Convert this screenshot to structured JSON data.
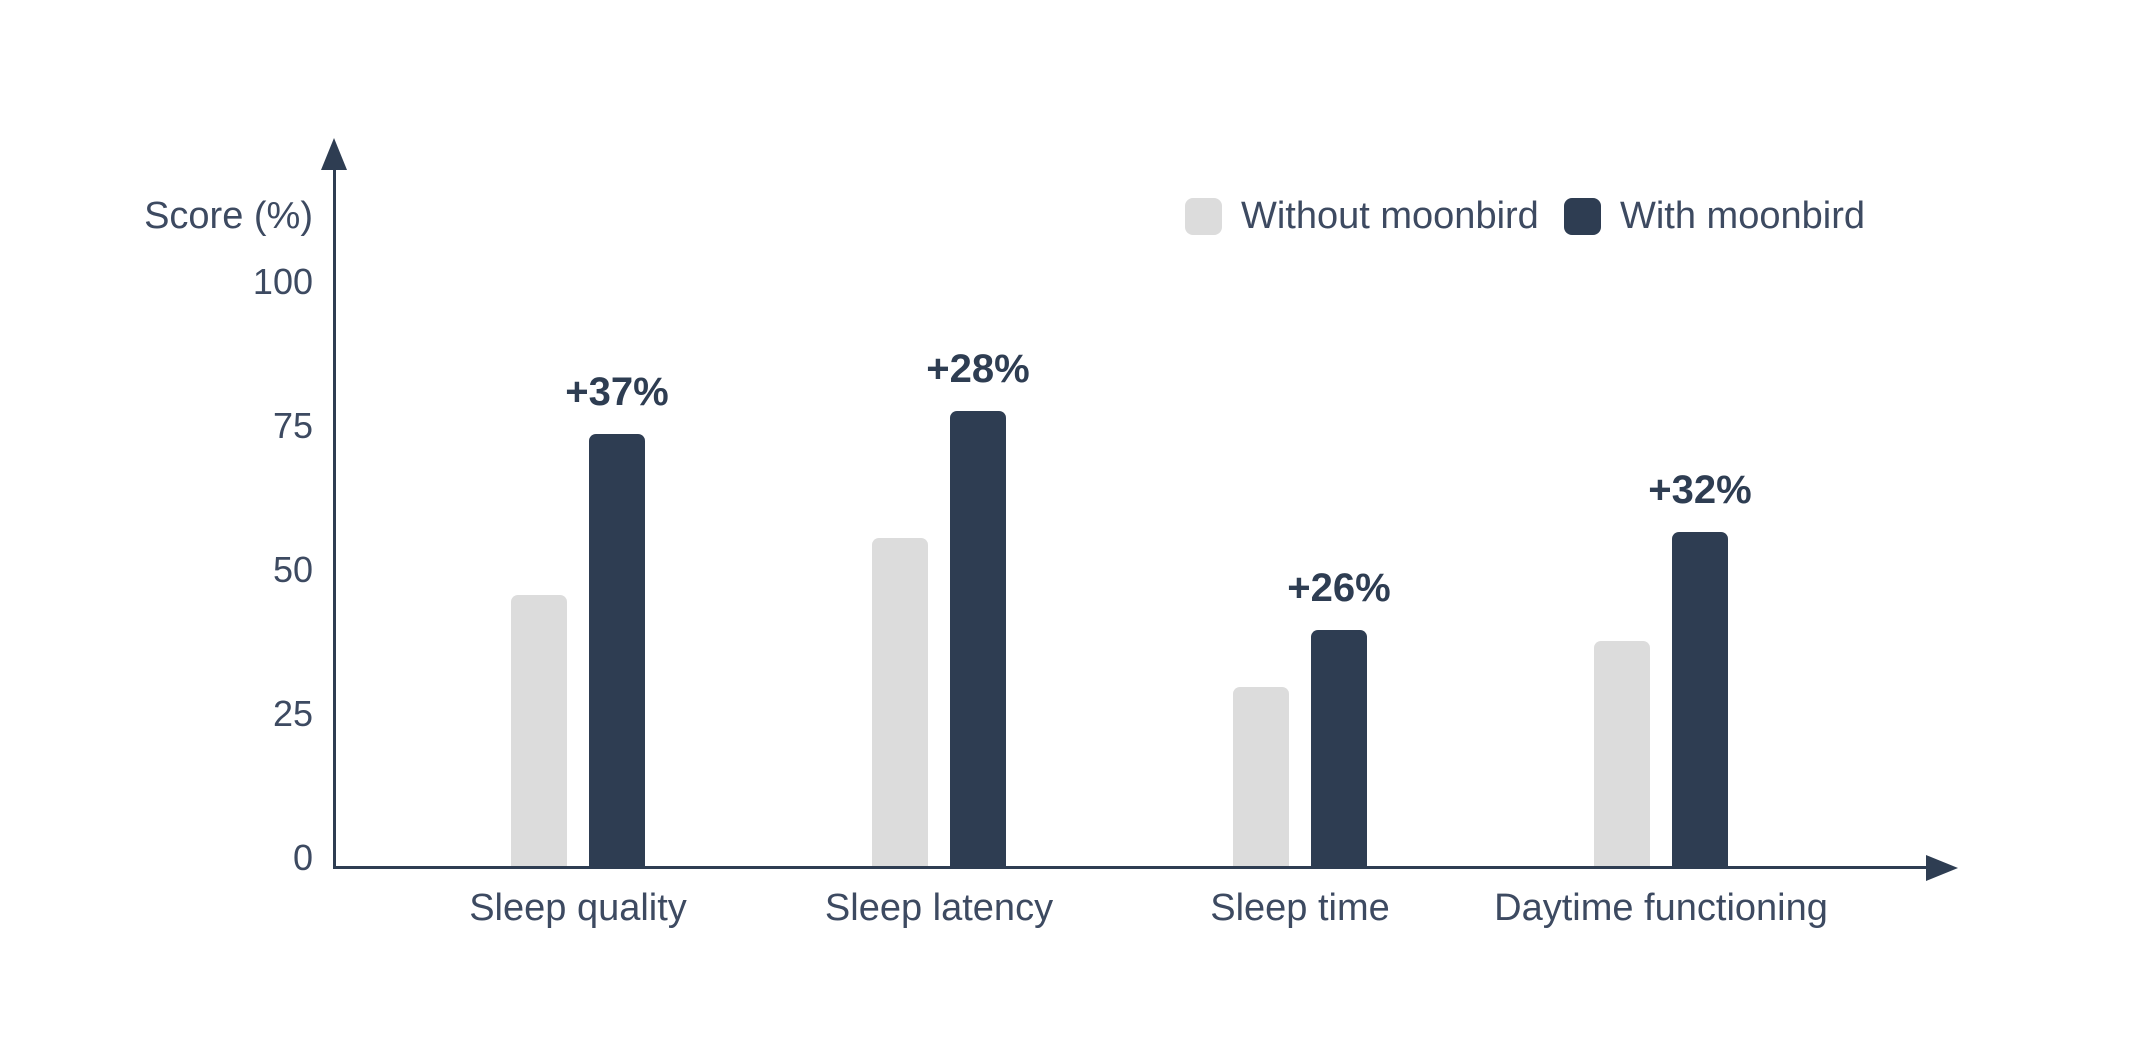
{
  "chart_data": {
    "type": "bar",
    "title": "",
    "ylabel": "Score (%)",
    "xlabel": "",
    "categories": [
      "Sleep quality",
      "Sleep latency",
      "Sleep time",
      "Daytime functioning"
    ],
    "series": [
      {
        "name": "Without moonbird",
        "color": "#dcdcdc",
        "values": [
          47,
          57,
          31,
          39
        ]
      },
      {
        "name": "With moonbird",
        "color": "#2e3d52",
        "values": [
          75,
          79,
          41,
          58
        ]
      }
    ],
    "annotations": [
      "+37%",
      "+28%",
      "+26%",
      "+32%"
    ],
    "yticks": [
      0,
      25,
      50,
      75,
      100
    ],
    "ylim": [
      0,
      100
    ],
    "grid": false,
    "legend_position": "top-right",
    "colors": {
      "axis": "#2e3d52",
      "label_text": "#3d4a61",
      "annotation_text": "#2e3d52",
      "background": "#ffffff"
    }
  }
}
